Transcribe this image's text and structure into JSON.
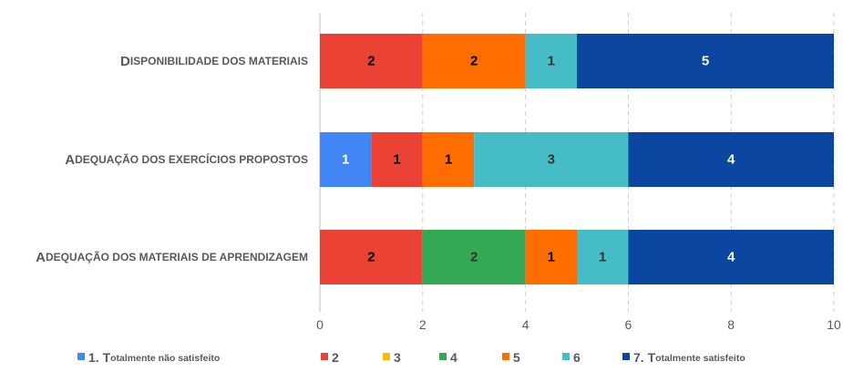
{
  "chart_data": {
    "type": "bar",
    "orientation": "horizontal",
    "stacked": true,
    "categories": [
      "Disponibilidade dos materiais",
      "Adequação dos exercícios propostos",
      "Adequação dos materiais de aprendizagem"
    ],
    "series": [
      {
        "name": "1. Totalmente não satisfeito",
        "color": "#4285f4",
        "values": [
          0,
          1,
          0
        ]
      },
      {
        "name": "2",
        "color": "#ea4335",
        "values": [
          2,
          1,
          2
        ]
      },
      {
        "name": "3",
        "color": "#fbbc04",
        "values": [
          0,
          0,
          0
        ]
      },
      {
        "name": "4",
        "color": "#34a853",
        "values": [
          0,
          0,
          2
        ]
      },
      {
        "name": "5",
        "color": "#ff6d01",
        "values": [
          2,
          1,
          1
        ]
      },
      {
        "name": "6",
        "color": "#46bdc6",
        "values": [
          1,
          3,
          1
        ]
      },
      {
        "name": "7. Totalmente satisfeito",
        "color": "#0b47a1",
        "values": [
          5,
          4,
          4
        ]
      }
    ],
    "label_colors": [
      "#ffffff",
      "#000000",
      "#000000",
      "#333333",
      "#000000",
      "#333333",
      "#ffffff"
    ],
    "xticks": [
      0,
      2,
      4,
      6,
      8,
      10
    ],
    "xlim": [
      0,
      10
    ],
    "grid": "vertical dashed",
    "legend_position": "bottom"
  }
}
